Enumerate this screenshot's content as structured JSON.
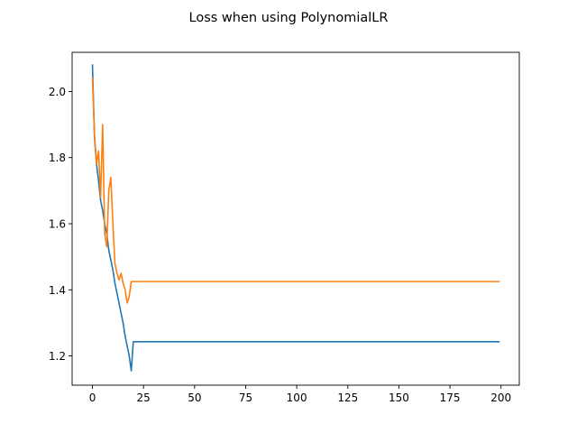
{
  "chart_data": {
    "type": "line",
    "title": "Loss when using PolynomialLR",
    "xlabel": "",
    "ylabel": "",
    "xlim": [
      -9.95,
      208.95
    ],
    "ylim": [
      1.1115,
      2.1185
    ],
    "grid": false,
    "legend": "none",
    "x_ticks": [
      0,
      25,
      50,
      75,
      100,
      125,
      150,
      175,
      200
    ],
    "x_tick_labels": [
      "0",
      "25",
      "50",
      "75",
      "100",
      "125",
      "150",
      "175",
      "200"
    ],
    "y_ticks": [
      1.2,
      1.4,
      1.6,
      1.8,
      2.0
    ],
    "y_tick_labels": [
      "1.2",
      "1.4",
      "1.6",
      "1.8",
      "2.0"
    ],
    "series": [
      {
        "name": "series-1",
        "color": "#1f77b4",
        "points": [
          [
            0,
            2.08
          ],
          [
            1,
            1.86
          ],
          [
            2,
            1.78
          ],
          [
            3,
            1.73
          ],
          [
            4,
            1.67
          ],
          [
            5,
            1.64
          ],
          [
            6,
            1.6
          ],
          [
            7,
            1.57
          ],
          [
            8,
            1.52
          ],
          [
            9,
            1.49
          ],
          [
            10,
            1.46
          ],
          [
            11,
            1.42
          ],
          [
            12,
            1.39
          ],
          [
            13,
            1.36
          ],
          [
            14,
            1.33
          ],
          [
            15,
            1.3
          ],
          [
            16,
            1.26
          ],
          [
            17,
            1.23
          ],
          [
            18,
            1.2
          ],
          [
            19,
            1.155
          ],
          [
            20,
            1.243
          ],
          [
            199,
            1.243
          ]
        ]
      },
      {
        "name": "series-2",
        "color": "#ff7f0e",
        "points": [
          [
            0,
            2.04
          ],
          [
            1,
            1.87
          ],
          [
            2,
            1.78
          ],
          [
            3,
            1.82
          ],
          [
            4,
            1.68
          ],
          [
            5,
            1.9
          ],
          [
            6,
            1.57
          ],
          [
            7,
            1.53
          ],
          [
            8,
            1.7
          ],
          [
            9,
            1.74
          ],
          [
            10,
            1.6
          ],
          [
            11,
            1.48
          ],
          [
            12,
            1.45
          ],
          [
            13,
            1.43
          ],
          [
            14,
            1.45
          ],
          [
            15,
            1.42
          ],
          [
            16,
            1.4
          ],
          [
            17,
            1.36
          ],
          [
            18,
            1.38
          ],
          [
            19,
            1.425
          ],
          [
            20,
            1.425
          ],
          [
            199,
            1.425
          ]
        ]
      }
    ]
  }
}
